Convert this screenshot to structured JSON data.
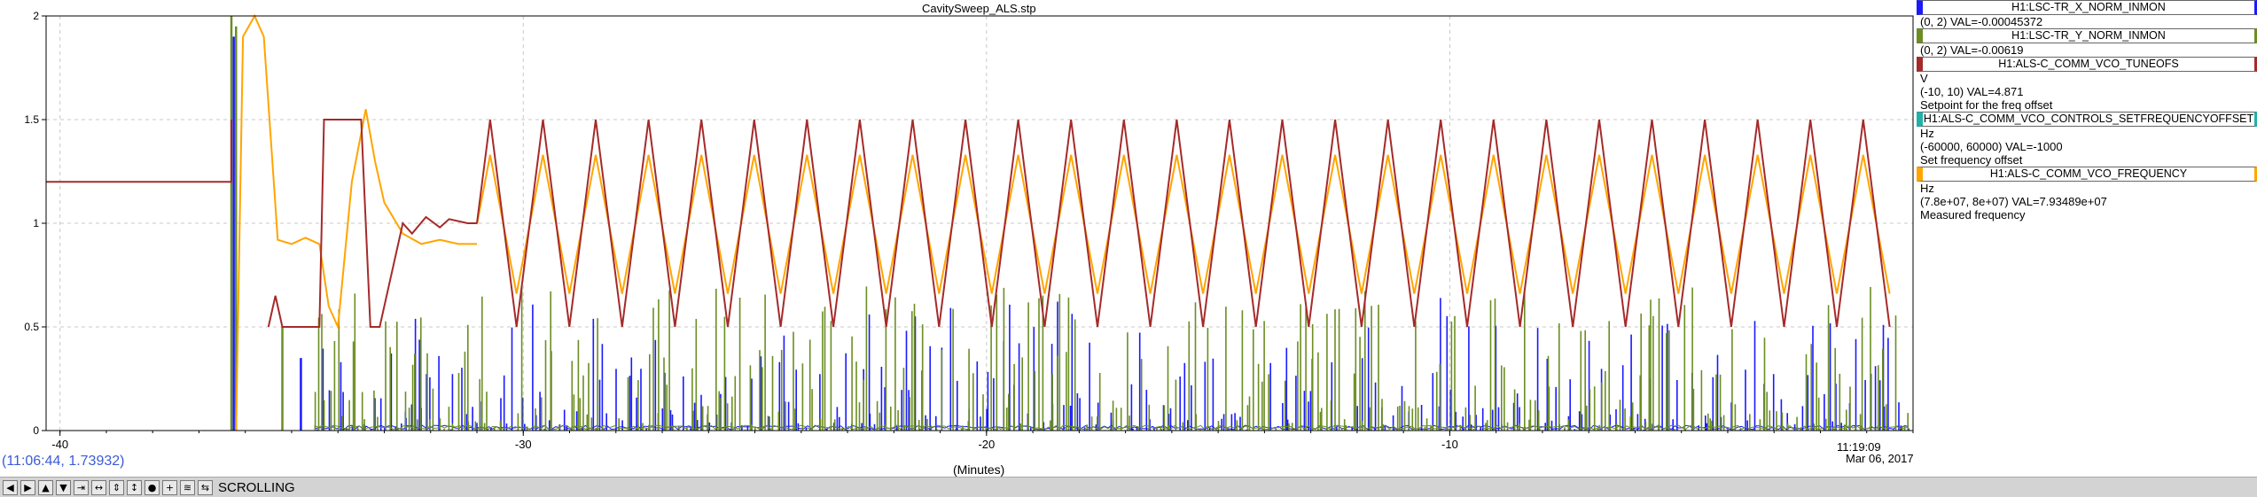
{
  "window": {
    "title": "CavitySweep_ALS.stp"
  },
  "cursor_readout": "(11:06:44, 1.73932)",
  "timestamp": {
    "time": "11:19:09",
    "date": "Mar 06, 2017"
  },
  "toolbar": {
    "buttons": [
      {
        "name": "left-icon",
        "glyph": "◀"
      },
      {
        "name": "right-icon",
        "glyph": "▶"
      },
      {
        "name": "up-icon",
        "glyph": "▲"
      },
      {
        "name": "down-icon",
        "glyph": "▼"
      },
      {
        "name": "compress-x-icon",
        "glyph": "⇥"
      },
      {
        "name": "expand-x-icon",
        "glyph": "↔"
      },
      {
        "name": "compress-y-icon",
        "glyph": "⇕"
      },
      {
        "name": "expand-y-icon",
        "glyph": "↕"
      },
      {
        "name": "stop-icon",
        "glyph": "●"
      },
      {
        "name": "plus-icon",
        "glyph": "+"
      },
      {
        "name": "autoscale-icon",
        "glyph": "≋"
      },
      {
        "name": "scroll-icon",
        "glyph": "⇆"
      }
    ],
    "mode_label": "SCROLLING"
  },
  "legend": [
    {
      "channel": "H1:LSC-TR_X_NORM_INMON",
      "color": "#1a1aff",
      "lines": [
        "(0, 2) VAL=-0.00045372"
      ]
    },
    {
      "channel": "H1:LSC-TR_Y_NORM_INMON",
      "color": "#6b8e23",
      "lines": [
        "(0, 2) VAL=-0.00619"
      ]
    },
    {
      "channel": "H1:ALS-C_COMM_VCO_TUNEOFS",
      "color": "#a52a2a",
      "lines": [
        "V",
        "(-10, 10) VAL=4.871",
        "Setpoint for the freq offset"
      ]
    },
    {
      "channel": "H1:ALS-C_COMM_VCO_CONTROLS_SETFREQUENCYOFFSET",
      "color": "#20b2aa",
      "lines": [
        "Hz",
        "(-60000, 60000)  VAL=-1000",
        "Set frequency offset"
      ]
    },
    {
      "channel": "H1:ALS-C_COMM_VCO_FREQUENCY",
      "color": "#ffa500",
      "lines": [
        "Hz",
        "(7.8e+07, 8e+07) VAL=7.93489e+07",
        "Measured frequency"
      ]
    }
  ],
  "chart_data": {
    "type": "line",
    "title": "CavitySweep_ALS.stp",
    "xlabel": "(Minutes)",
    "ylabel": "",
    "xlim": [
      -40.3,
      0
    ],
    "ylim": [
      0,
      2
    ],
    "x_ticks": [
      -40,
      -30,
      -20,
      -10
    ],
    "y_ticks": [
      0,
      0.5,
      1,
      1.5,
      2
    ],
    "grid": true,
    "legend_placement": "right",
    "series": [
      {
        "name": "H1:ALS-C_COMM_VCO_TUNEOFS",
        "color": "#a52a2a",
        "segments": [
          {
            "x": [
              -40.3,
              -36.3,
              -36.3
            ],
            "y": [
              1.2,
              1.2,
              1.5
            ]
          },
          {
            "x": [
              -35.5,
              -35.35,
              -35.2,
              -34.4,
              -34.3,
              -34.1,
              -33.5,
              -33.3,
              -33.1,
              -32.6,
              -32.4,
              -32.1,
              -31.8,
              -31.6,
              -31.2,
              -31.0
            ],
            "y": [
              0.5,
              0.65,
              0.5,
              0.5,
              1.5,
              1.5,
              1.5,
              0.5,
              0.5,
              1.0,
              0.95,
              1.03,
              0.98,
              1.02,
              1.0,
              1.0
            ]
          }
        ],
        "triangle": {
          "start": -31.0,
          "end": -0.35,
          "period": 1.14,
          "min": 0.5,
          "max": 1.5
        }
      },
      {
        "name": "H1:ALS-C_COMM_VCO_FREQUENCY",
        "color": "#ffa500",
        "segments": [
          {
            "x": [
              -36.2,
              -36.05,
              -35.8,
              -35.6,
              -35.3,
              -35.0,
              -34.7,
              -34.4,
              -34.2,
              -34.0,
              -33.7,
              -33.4,
              -33.2,
              -33.0,
              -32.6,
              -32.2,
              -31.8,
              -31.4,
              -31.0
            ],
            "y": [
              0,
              1.9,
              2.0,
              1.9,
              0.92,
              0.9,
              0.93,
              0.9,
              0.6,
              0.5,
              1.2,
              1.55,
              1.3,
              1.1,
              0.95,
              0.9,
              0.92,
              0.9,
              0.9
            ]
          }
        ],
        "triangle": {
          "start": -31.0,
          "end": -0.35,
          "period": 1.14,
          "min": 0.66,
          "max": 1.33
        }
      },
      {
        "name": "H1:LSC-TR_X_NORM_INMON",
        "color": "#1a1aff",
        "type": "spikes",
        "max": 0.65
      },
      {
        "name": "H1:LSC-TR_Y_NORM_INMON",
        "color": "#6b8e23",
        "type": "spikes",
        "max": 0.7
      }
    ]
  }
}
